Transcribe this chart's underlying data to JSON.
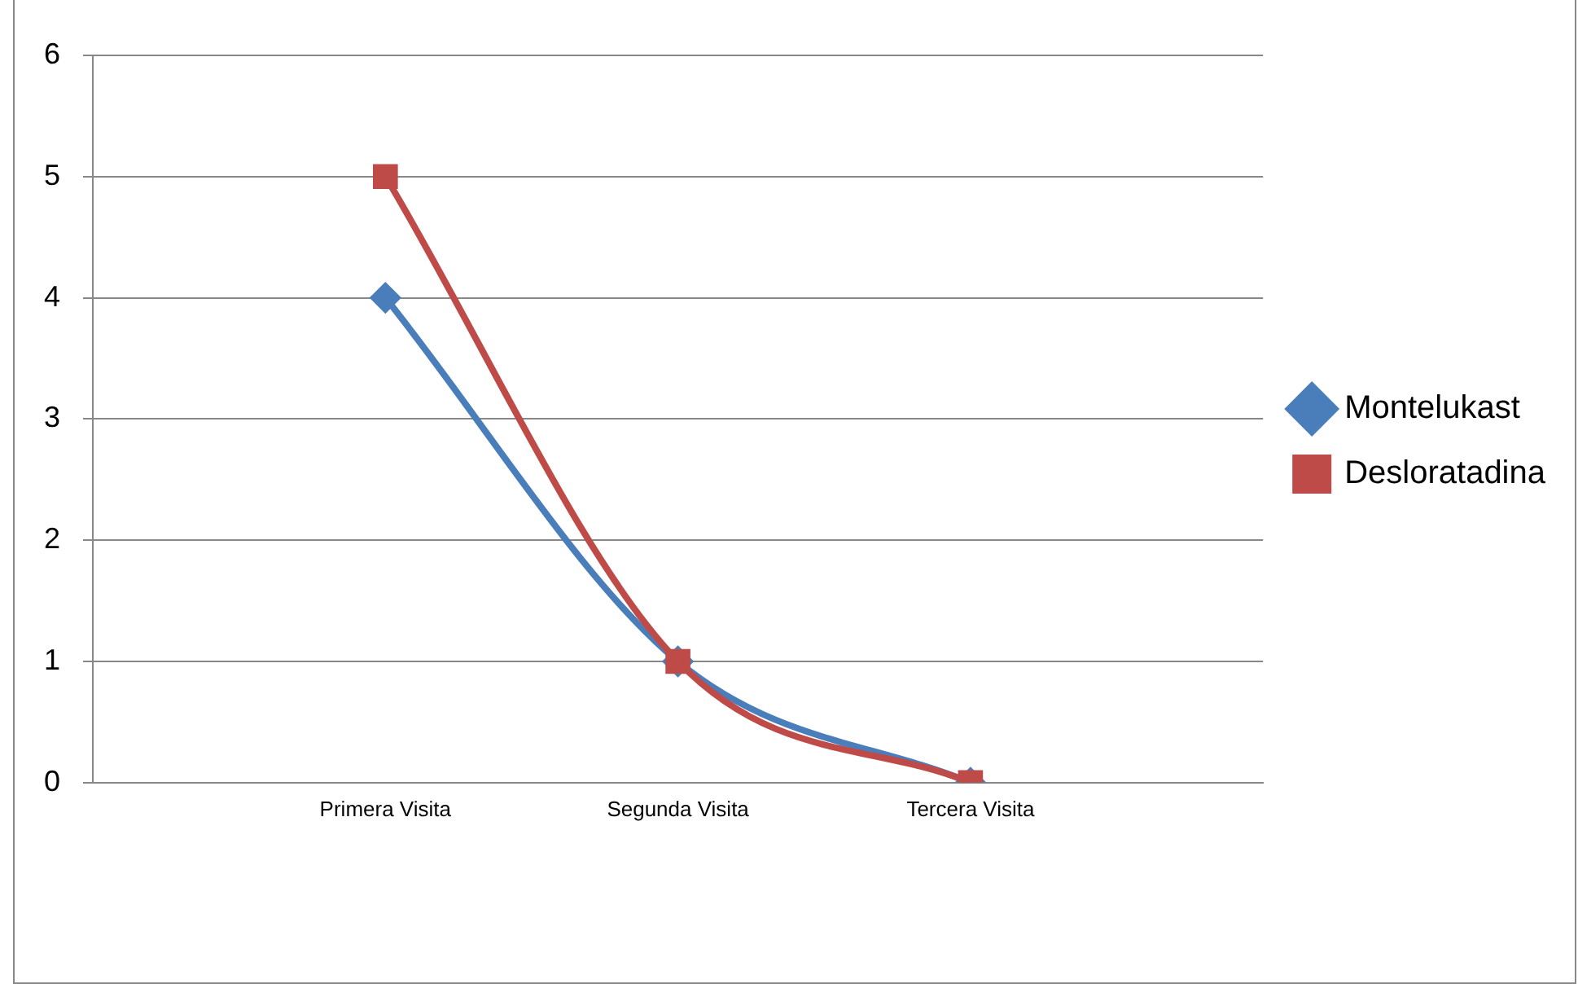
{
  "chart_data": {
    "type": "line",
    "categories": [
      "Primera Visita",
      "Segunda Visita",
      "Tercera Visita"
    ],
    "series": [
      {
        "name": "Montelukast",
        "color": "#4a7ebb",
        "values": [
          4,
          1,
          0
        ],
        "marker": "diamond"
      },
      {
        "name": "Desloratadina",
        "color": "#be4b48",
        "values": [
          5,
          1,
          0
        ],
        "marker": "square"
      }
    ],
    "ylim": [
      0,
      6
    ],
    "yticks": [
      0,
      1,
      2,
      3,
      4,
      5,
      6
    ],
    "grid": "y",
    "legend": "right"
  }
}
